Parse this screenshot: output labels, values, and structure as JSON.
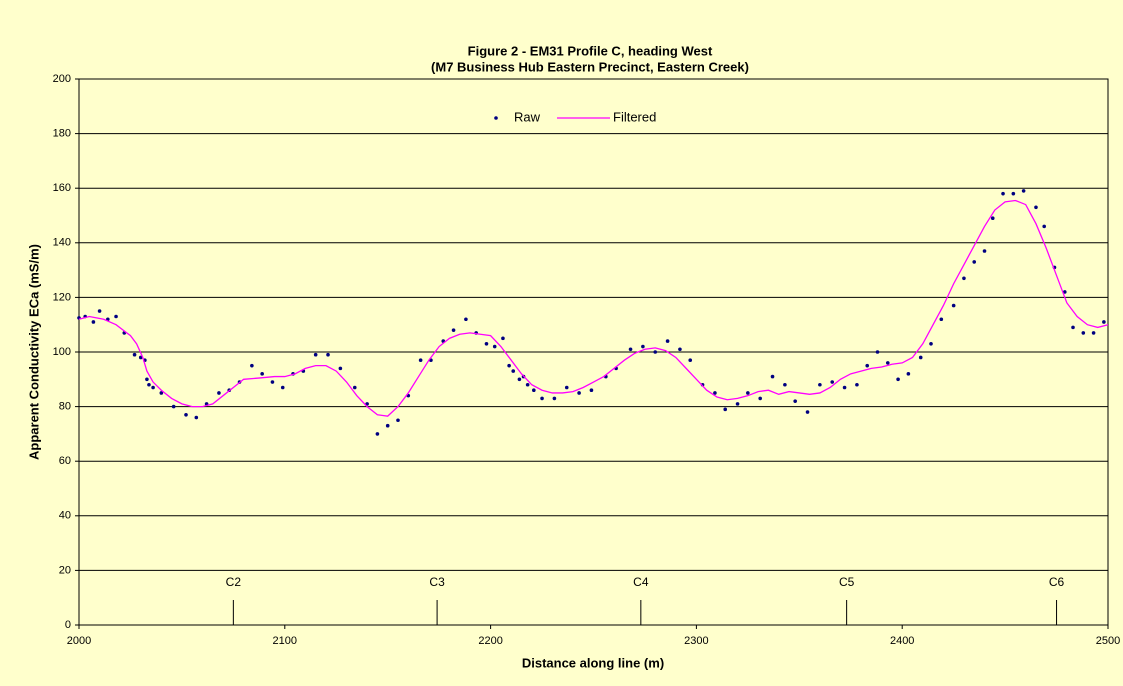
{
  "chart_data": {
    "type": "line",
    "title": "Figure 2 - EM31 Profile C, heading West",
    "subtitle": "(M7 Business Hub Eastern Precinct, Eastern Creek)",
    "xlabel": "Distance along line (m)",
    "ylabel": "Apparent Conductivity ECa (mS/m)",
    "xlim": [
      2000,
      2500
    ],
    "xticks": [
      2000,
      2100,
      2200,
      2300,
      2400,
      2500
    ],
    "ylim": [
      0,
      200
    ],
    "yticks": [
      0,
      20,
      40,
      60,
      80,
      100,
      120,
      140,
      160,
      180,
      200
    ],
    "grid": true,
    "annotations": [
      {
        "text": "C2",
        "x": 2075
      },
      {
        "text": "C3",
        "x": 2174
      },
      {
        "text": "C4",
        "x": 2273
      },
      {
        "text": "C5",
        "x": 2373
      },
      {
        "text": "C6",
        "x": 2475
      }
    ],
    "series": [
      {
        "name": "Raw",
        "type": "scatter",
        "color": "#000080",
        "x": [
          2000,
          2003,
          2007,
          2010,
          2014,
          2018,
          2022,
          2027,
          2030,
          2032,
          2033,
          2034,
          2036,
          2040,
          2046,
          2052,
          2057,
          2062,
          2068,
          2073,
          2078,
          2084,
          2089,
          2094,
          2099,
          2104,
          2109,
          2115,
          2121,
          2127,
          2134,
          2140,
          2145,
          2150,
          2155,
          2160,
          2166,
          2171,
          2177,
          2182,
          2188,
          2193,
          2198,
          2202,
          2206,
          2209,
          2211,
          2214,
          2216,
          2218,
          2221,
          2225,
          2231,
          2237,
          2243,
          2249,
          2256,
          2261,
          2268,
          2274,
          2280,
          2286,
          2292,
          2297,
          2303,
          2309,
          2314,
          2320,
          2325,
          2331,
          2337,
          2343,
          2348,
          2354,
          2360,
          2366,
          2372,
          2378,
          2383,
          2388,
          2393,
          2398,
          2403,
          2409,
          2414,
          2419,
          2425,
          2430,
          2435,
          2440,
          2444,
          2449,
          2454,
          2459,
          2465,
          2469,
          2474,
          2479,
          2483,
          2488,
          2493,
          2498
        ],
        "values": [
          112.5,
          113,
          111,
          115,
          112,
          113,
          107,
          99,
          98,
          97,
          90,
          88,
          87,
          85,
          80,
          77,
          76,
          81,
          85,
          86,
          89,
          95,
          92,
          89,
          87,
          92,
          93,
          99,
          99,
          94,
          87,
          81,
          70,
          73,
          75,
          84,
          97,
          97,
          104,
          108,
          112,
          107,
          103,
          102,
          105,
          95,
          93,
          90,
          91,
          88,
          86,
          83,
          83,
          87,
          85,
          86,
          91,
          94,
          101,
          102,
          100,
          104,
          101,
          97,
          88,
          85,
          79,
          81,
          85,
          83,
          91,
          88,
          82,
          78,
          88,
          89,
          87,
          88,
          95,
          100,
          96,
          90,
          92,
          98,
          103,
          112,
          117,
          127,
          133,
          137,
          149,
          158,
          158,
          159,
          153,
          146,
          131,
          122,
          109,
          107,
          107,
          111
        ]
      },
      {
        "name": "Filtered",
        "type": "line",
        "color": "#ff00ff",
        "x": [
          2000,
          2005,
          2012,
          2018,
          2025,
          2028,
          2031,
          2033,
          2036,
          2040,
          2045,
          2050,
          2055,
          2060,
          2065,
          2070,
          2075,
          2080,
          2088,
          2095,
          2100,
          2105,
          2110,
          2115,
          2120,
          2125,
          2130,
          2135,
          2140,
          2145,
          2150,
          2155,
          2160,
          2165,
          2170,
          2175,
          2180,
          2185,
          2190,
          2195,
          2200,
          2205,
          2210,
          2215,
          2220,
          2225,
          2230,
          2235,
          2240,
          2245,
          2250,
          2255,
          2260,
          2265,
          2270,
          2275,
          2280,
          2285,
          2290,
          2295,
          2300,
          2305,
          2310,
          2315,
          2320,
          2325,
          2330,
          2335,
          2340,
          2345,
          2350,
          2355,
          2360,
          2365,
          2370,
          2375,
          2380,
          2385,
          2390,
          2395,
          2400,
          2405,
          2410,
          2415,
          2420,
          2425,
          2430,
          2435,
          2440,
          2445,
          2450,
          2455,
          2460,
          2465,
          2470,
          2475,
          2480,
          2485,
          2490,
          2495,
          2500
        ],
        "values": [
          112,
          113,
          112,
          110,
          106,
          103,
          98,
          93,
          89,
          86,
          83,
          81,
          80,
          80,
          81,
          84,
          87,
          90,
          90.5,
          91,
          91,
          92,
          94,
          95,
          95,
          93,
          89,
          84,
          80,
          77,
          76.5,
          80,
          85,
          91,
          97,
          102,
          105,
          106.5,
          107,
          106.5,
          106,
          102,
          97,
          92,
          88,
          86,
          85,
          85,
          85.5,
          87,
          89,
          91,
          94,
          97,
          99.5,
          101,
          101.5,
          100.5,
          98,
          94,
          90,
          86,
          83.5,
          82.5,
          83,
          84,
          85.5,
          86,
          84.5,
          85.5,
          85,
          84.5,
          85,
          87,
          90,
          92,
          93,
          94,
          94.5,
          95.5,
          96,
          98,
          103,
          110,
          117,
          125,
          132,
          139,
          146,
          152,
          155,
          155.5,
          154,
          147,
          138,
          128,
          118,
          113,
          110,
          109,
          110
        ]
      }
    ]
  }
}
